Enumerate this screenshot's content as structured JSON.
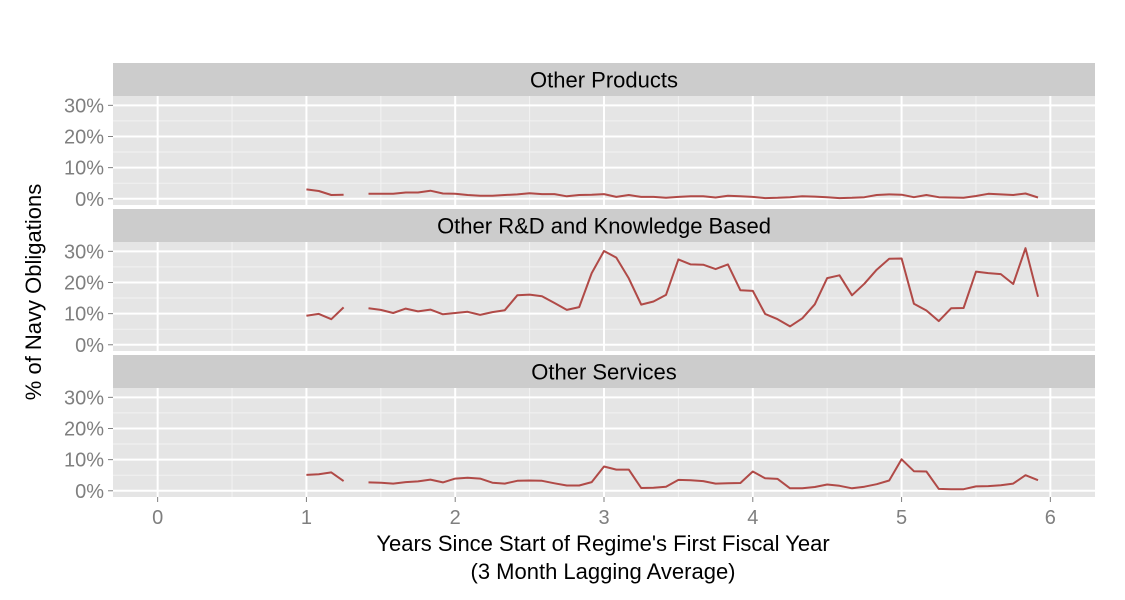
{
  "chart_data": {
    "type": "line",
    "xlabel": "Years Since Start of Regime's First Fiscal Year",
    "xlabel_line2": "(3 Month Lagging Average)",
    "ylabel": "% of Navy Obligations",
    "xlim": [
      -0.3,
      6.3
    ],
    "ylim": [
      -2,
      33
    ],
    "x_ticks": [
      0,
      1,
      2,
      3,
      4,
      5,
      6
    ],
    "x_tick_labels": [
      "0",
      "1",
      "2",
      "3",
      "4",
      "5",
      "6"
    ],
    "y_ticks": [
      0,
      10,
      20,
      30
    ],
    "y_tick_labels": [
      "0%",
      "10%",
      "20%",
      "30%"
    ],
    "grid": true,
    "line_color": "#b04a47",
    "panels": [
      {
        "title": "Other Products",
        "segments": [
          {
            "x": [
              1.0,
              1.083,
              1.167,
              1.25
            ],
            "y": [
              3.0,
              2.5,
              1.2,
              1.3
            ]
          },
          {
            "x": [
              1.417,
              1.5,
              1.583,
              1.667,
              1.75,
              1.833,
              1.917,
              2.0,
              2.083,
              2.167,
              2.25,
              2.333,
              2.417,
              2.5,
              2.583,
              2.667,
              2.75,
              2.833,
              2.917,
              3.0,
              3.083,
              3.167,
              3.25,
              3.333,
              3.417,
              3.5,
              3.583,
              3.667,
              3.75,
              3.833,
              3.917,
              4.0,
              4.083,
              4.167,
              4.25,
              4.333,
              4.417,
              4.5,
              4.583,
              4.667,
              4.75,
              4.833,
              4.917,
              5.0,
              5.083,
              5.167,
              5.25,
              5.333,
              5.417,
              5.5,
              5.583,
              5.667,
              5.75,
              5.833,
              5.917
            ],
            "y": [
              1.6,
              1.6,
              1.6,
              2.0,
              2.0,
              2.6,
              1.7,
              1.6,
              1.2,
              1.0,
              1.0,
              1.2,
              1.4,
              1.8,
              1.5,
              1.5,
              0.8,
              1.2,
              1.3,
              1.5,
              0.6,
              1.2,
              0.6,
              0.6,
              0.3,
              0.6,
              0.8,
              0.8,
              0.4,
              1.0,
              0.8,
              0.6,
              0.2,
              0.3,
              0.5,
              0.8,
              0.7,
              0.5,
              0.2,
              0.3,
              0.5,
              1.2,
              1.4,
              1.3,
              0.5,
              1.2,
              0.5,
              0.4,
              0.3,
              0.9,
              1.6,
              1.4,
              1.2,
              1.7,
              0.4
            ]
          }
        ]
      },
      {
        "title": "Other R&D and Knowledge Based",
        "segments": [
          {
            "x": [
              1.0,
              1.083,
              1.167,
              1.25
            ],
            "y": [
              9.3,
              9.9,
              8.2,
              12.0
            ]
          },
          {
            "x": [
              1.417,
              1.5,
              1.583,
              1.667,
              1.75,
              1.833,
              1.917,
              2.0,
              2.083,
              2.167,
              2.25,
              2.333,
              2.417,
              2.5,
              2.583,
              2.667,
              2.75,
              2.833,
              2.917,
              3.0,
              3.083,
              3.167,
              3.25,
              3.333,
              3.417,
              3.5,
              3.583,
              3.667,
              3.75,
              3.833,
              3.917,
              4.0,
              4.083,
              4.167,
              4.25,
              4.333,
              4.417,
              4.5,
              4.583,
              4.667,
              4.75,
              4.833,
              4.917,
              5.0,
              5.083,
              5.167,
              5.25,
              5.333,
              5.417,
              5.5,
              5.583,
              5.667,
              5.75,
              5.833,
              5.917
            ],
            "y": [
              11.7,
              11.2,
              10.2,
              11.6,
              10.7,
              11.3,
              9.8,
              10.2,
              10.6,
              9.6,
              10.5,
              11.1,
              15.9,
              16.1,
              15.6,
              13.4,
              11.2,
              12.1,
              23.0,
              30.1,
              28.0,
              21.3,
              12.9,
              13.9,
              16.0,
              27.4,
              25.8,
              25.7,
              24.3,
              25.8,
              17.5,
              17.3,
              9.9,
              8.2,
              5.9,
              8.5,
              13.0,
              21.4,
              22.3,
              15.9,
              19.6,
              24.1,
              27.6,
              27.7,
              13.2,
              11.0,
              7.6,
              11.7,
              11.8,
              23.5,
              23.0,
              22.7,
              19.5,
              31.0,
              15.4
            ]
          }
        ]
      },
      {
        "title": "Other Services",
        "segments": [
          {
            "x": [
              1.0,
              1.083,
              1.167,
              1.25
            ],
            "y": [
              5.1,
              5.3,
              5.9,
              3.1
            ]
          },
          {
            "x": [
              1.417,
              1.5,
              1.583,
              1.667,
              1.75,
              1.833,
              1.917,
              2.0,
              2.083,
              2.167,
              2.25,
              2.333,
              2.417,
              2.5,
              2.583,
              2.667,
              2.75,
              2.833,
              2.917,
              3.0,
              3.083,
              3.167,
              3.25,
              3.333,
              3.417,
              3.5,
              3.583,
              3.667,
              3.75,
              3.833,
              3.917,
              4.0,
              4.083,
              4.167,
              4.25,
              4.333,
              4.417,
              4.5,
              4.583,
              4.667,
              4.75,
              4.833,
              4.917,
              5.0,
              5.083,
              5.167,
              5.25,
              5.333,
              5.417,
              5.5,
              5.583,
              5.667,
              5.75,
              5.833,
              5.917
            ],
            "y": [
              2.7,
              2.6,
              2.3,
              2.8,
              3.0,
              3.6,
              2.7,
              3.9,
              4.2,
              3.9,
              2.6,
              2.3,
              3.2,
              3.3,
              3.2,
              2.4,
              1.7,
              1.7,
              2.8,
              7.8,
              6.8,
              6.8,
              0.9,
              1.0,
              1.3,
              3.5,
              3.4,
              3.1,
              2.3,
              2.4,
              2.5,
              6.2,
              4.0,
              3.8,
              0.8,
              0.8,
              1.2,
              2.0,
              1.6,
              0.8,
              1.3,
              2.1,
              3.3,
              10.1,
              6.3,
              6.2,
              0.6,
              0.5,
              0.5,
              1.4,
              1.5,
              1.8,
              2.3,
              5.0,
              3.4
            ]
          }
        ]
      }
    ]
  }
}
